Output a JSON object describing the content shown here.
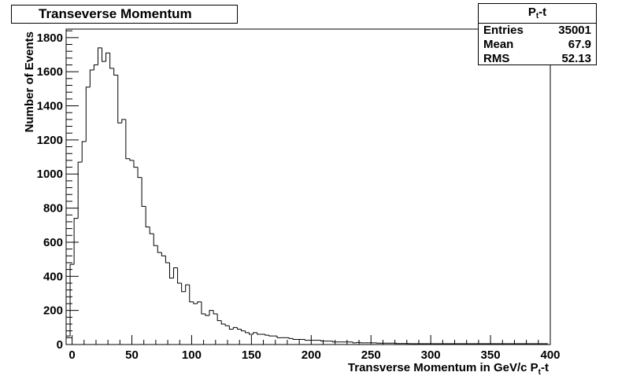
{
  "chart_data": {
    "type": "bar",
    "style": "step-histogram",
    "title": "Transeverse Momentum",
    "xlabel": "Transverse Momentum in GeV/c P_t-t",
    "ylabel": "Number of Events",
    "xlim": [
      -5,
      400
    ],
    "ylim": [
      0,
      1850
    ],
    "x_ticks": [
      "0",
      "50",
      "100",
      "150",
      "200",
      "250",
      "300",
      "350",
      "400"
    ],
    "y_ticks": [
      "0",
      "200",
      "400",
      "600",
      "800",
      "1000",
      "1200",
      "1400",
      "1600",
      "1800"
    ],
    "bin_width": 3.33,
    "bin_start": -5,
    "values": [
      50,
      470,
      740,
      1070,
      1190,
      1510,
      1610,
      1640,
      1740,
      1660,
      1710,
      1620,
      1580,
      1300,
      1320,
      1090,
      1080,
      1040,
      980,
      810,
      690,
      650,
      580,
      540,
      520,
      480,
      390,
      450,
      360,
      310,
      350,
      250,
      240,
      250,
      180,
      170,
      200,
      180,
      140,
      120,
      110,
      90,
      100,
      90,
      80,
      70,
      60,
      70,
      60,
      60,
      55,
      50,
      50,
      40,
      40,
      40,
      35,
      30,
      30,
      30,
      25,
      25,
      25,
      25,
      20,
      20,
      20,
      15,
      15,
      15,
      15,
      15,
      10,
      12,
      10,
      10,
      10,
      10,
      8,
      8,
      8,
      8,
      8,
      6,
      6,
      6,
      5,
      5,
      5,
      5,
      5,
      5,
      5,
      5,
      5,
      5,
      5,
      5,
      5,
      5,
      5,
      5,
      5,
      5,
      5,
      5,
      5,
      5,
      5,
      5,
      5,
      5,
      5,
      5,
      5,
      5,
      5,
      5,
      5,
      5,
      5
    ],
    "legend": "none",
    "grid": false
  },
  "title_box": {
    "text": "Transeverse Momentum"
  },
  "stats": {
    "name_main": "P",
    "name_sub": "t",
    "name_suffix": "-t",
    "entries_label": "Entries",
    "entries_value": "35001",
    "mean_label": "Mean",
    "mean_value": "67.9",
    "rms_label": "RMS",
    "rms_value": "52.13"
  },
  "axis_title_x": {
    "main": "Transverse Momentum in GeV/c P",
    "sub": "t",
    "suffix": "-t"
  },
  "axis_title_y": {
    "text": "Number of Events"
  }
}
